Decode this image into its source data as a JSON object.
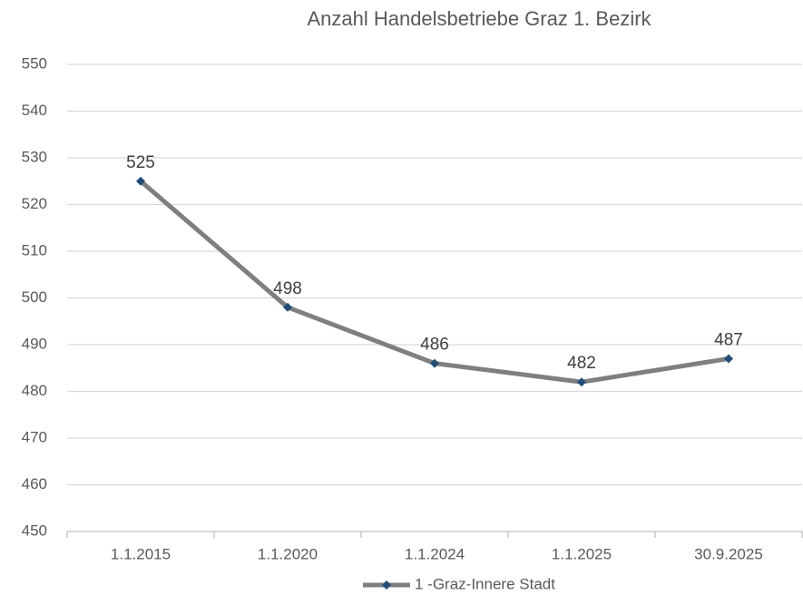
{
  "chart_data": {
    "type": "line",
    "title": "Anzahl Handelsbetriebe Graz 1. Bezirk",
    "categories": [
      "1.1.2015",
      "1.1.2020",
      "1.1.2024",
      "1.1.2025",
      "30.9.2025"
    ],
    "series": [
      {
        "name": "1 -Graz-Innere Stadt",
        "color": "#7f7f7f",
        "marker_color": "#1f4e79",
        "values": [
          525,
          498,
          486,
          482,
          487
        ]
      }
    ],
    "ylim": [
      450,
      550
    ],
    "yticks": [
      450,
      460,
      470,
      480,
      490,
      500,
      510,
      520,
      530,
      540,
      550
    ],
    "grid": true,
    "legend": "bottom",
    "data_labels": true
  }
}
